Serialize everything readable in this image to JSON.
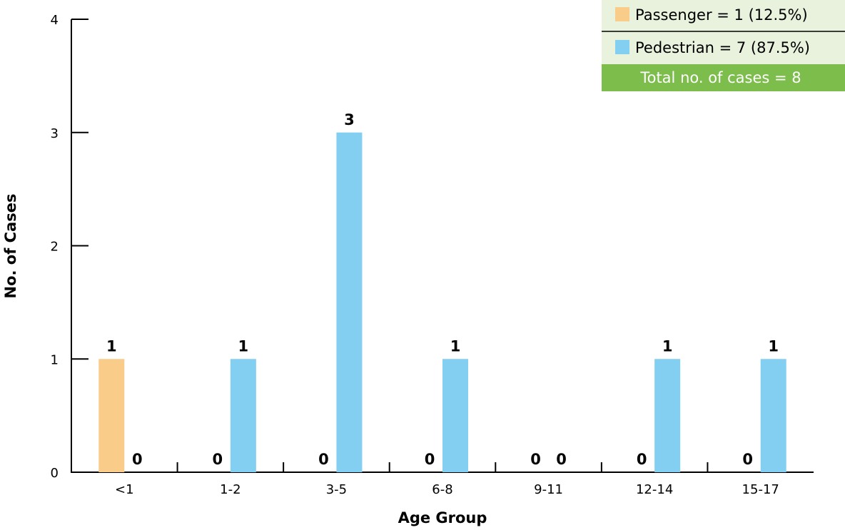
{
  "chart_data": {
    "type": "bar",
    "xlabel": "Age Group",
    "ylabel": "No. of Cases",
    "ylim": [
      0,
      4
    ],
    "yticks": [
      "0",
      "1",
      "2",
      "3",
      "4"
    ],
    "categories": [
      "<1",
      "1-2",
      "3-5",
      "6-8",
      "9-11",
      "12-14",
      "15-17"
    ],
    "series": [
      {
        "name": "Passenger",
        "color": "#f9cc8a",
        "values": [
          1,
          0,
          0,
          0,
          0,
          0,
          0
        ]
      },
      {
        "name": "Pedestrian",
        "color": "#82cff2",
        "values": [
          0,
          1,
          3,
          1,
          0,
          1,
          1
        ]
      }
    ],
    "legend": {
      "placement": "top-right",
      "entries": [
        "Passenger = 1 (12.5%)",
        "Pedestrian = 7 (87.5%)"
      ],
      "total": "Total no. of cases = 8",
      "background": "#e8f2dc",
      "total_color": "#7cbd4b"
    },
    "grid": false
  }
}
